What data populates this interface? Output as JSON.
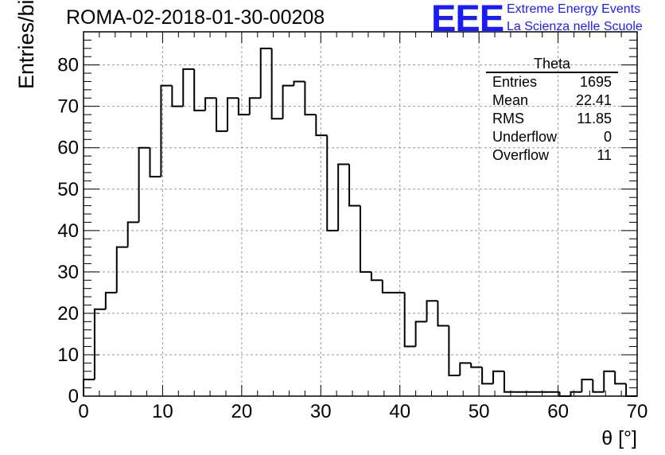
{
  "title": "ROMA-02-2018-01-30-00208",
  "logo": {
    "mark": "EEE",
    "line1": "Extreme Energy Events",
    "line2": "La Scienza nelle Scuole",
    "color": "#1a1aff"
  },
  "stats_box": {
    "title": "Theta",
    "rows": [
      {
        "label": "Entries",
        "value": "1695"
      },
      {
        "label": "Mean",
        "value": "22.41"
      },
      {
        "label": "RMS",
        "value": "11.85"
      },
      {
        "label": "Underflow",
        "value": "0"
      },
      {
        "label": "Overflow",
        "value": "11"
      }
    ]
  },
  "chart_data": {
    "type": "histogram",
    "title": "ROMA-02-2018-01-30-00208",
    "xlabel": "θ [°]",
    "ylabel": "Entries/bin",
    "xlim": [
      0,
      70
    ],
    "ylim": [
      0,
      88
    ],
    "xticks": [
      0,
      10,
      20,
      30,
      40,
      50,
      60,
      70
    ],
    "yticks": [
      0,
      10,
      20,
      30,
      40,
      50,
      60,
      70,
      80
    ],
    "grid": true,
    "bin_width": 1.4,
    "bin_start": 0,
    "values": [
      4,
      21,
      25,
      36,
      42,
      60,
      53,
      75,
      70,
      79,
      69,
      72,
      64,
      72,
      68,
      72,
      84,
      67,
      75,
      76,
      68,
      63,
      40,
      56,
      46,
      30,
      28,
      25,
      25,
      12,
      18,
      23,
      17,
      5,
      8,
      7,
      3,
      6,
      1,
      1,
      1,
      1,
      1,
      0,
      1,
      4,
      1,
      6,
      3,
      0
    ]
  }
}
